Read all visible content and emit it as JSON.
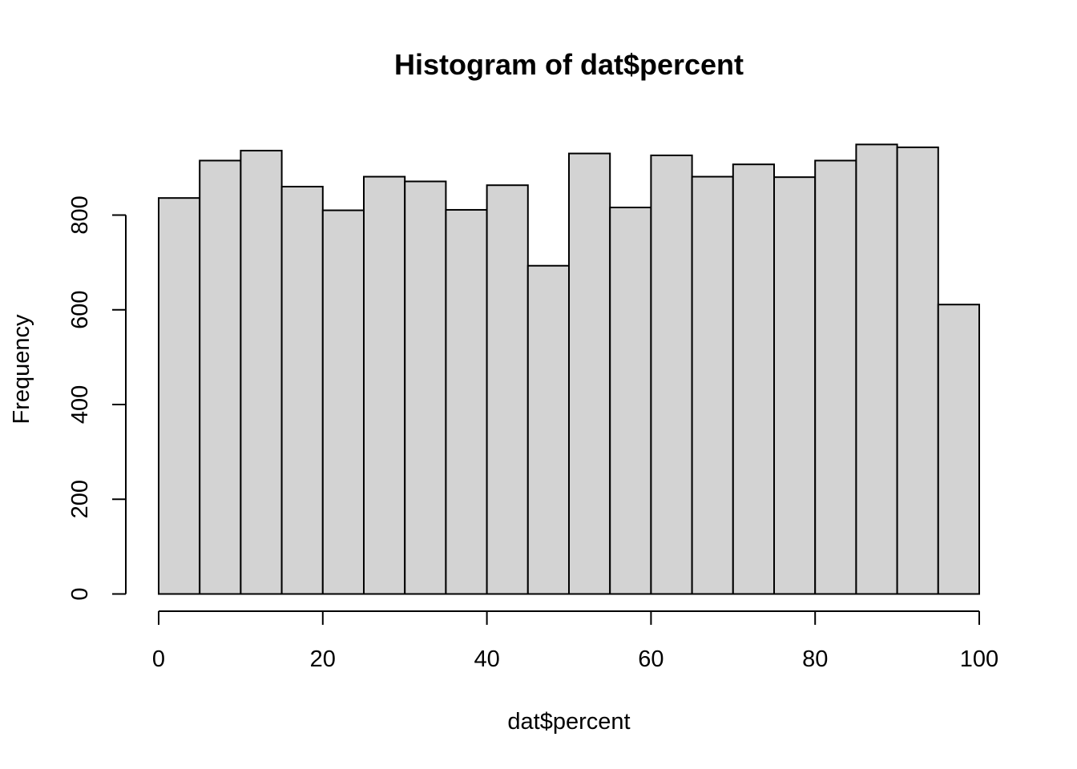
{
  "chart_data": {
    "type": "bar",
    "histogram": true,
    "title": "Histogram of dat$percent",
    "xlabel": "dat$percent",
    "ylabel": "Frequency",
    "bin_width": 5,
    "bin_edges": [
      0,
      5,
      10,
      15,
      20,
      25,
      30,
      35,
      40,
      45,
      50,
      55,
      60,
      65,
      70,
      75,
      80,
      85,
      90,
      95,
      100
    ],
    "values": [
      836,
      915,
      936,
      860,
      810,
      881,
      871,
      811,
      863,
      693,
      930,
      816,
      926,
      881,
      907,
      880,
      915,
      949,
      943,
      611
    ],
    "xlim": [
      0,
      100
    ],
    "ylim": [
      0,
      960
    ],
    "x_ticks": [
      "0",
      "20",
      "40",
      "60",
      "80",
      "100"
    ],
    "y_ticks": [
      "0",
      "200",
      "400",
      "600",
      "800"
    ],
    "grid": false,
    "legend": "none",
    "colors": {
      "bar_fill": "#d3d3d3",
      "bar_stroke": "#000000"
    }
  }
}
